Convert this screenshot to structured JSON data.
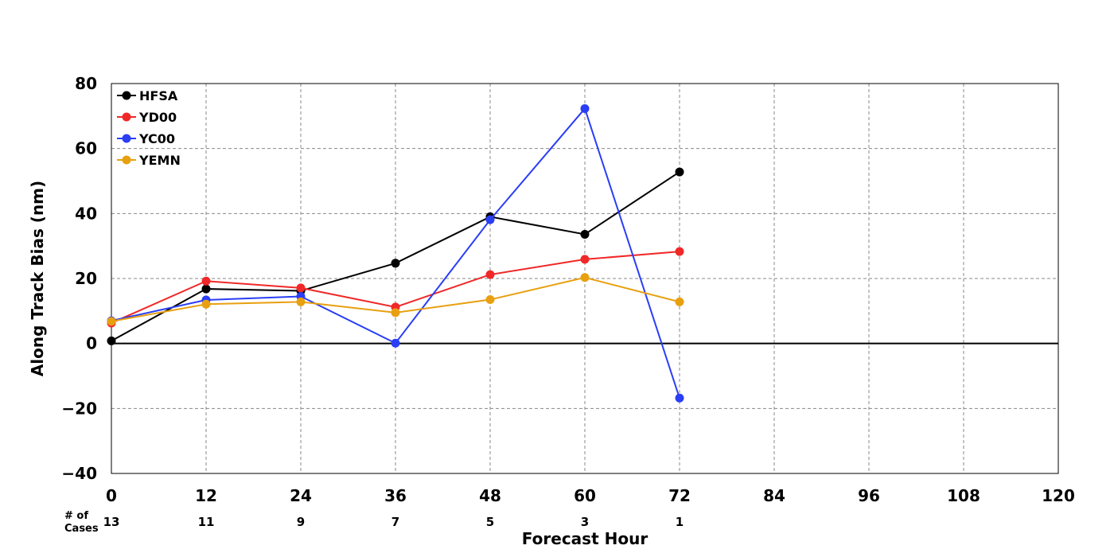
{
  "chart_data": {
    "type": "line",
    "xlabel": "Forecast Hour",
    "ylabel": "Along Track Bias (nm)",
    "xlim": [
      0,
      120
    ],
    "ylim": [
      -40,
      80
    ],
    "xticks": [
      0,
      12,
      24,
      36,
      48,
      60,
      72,
      84,
      96,
      108,
      120
    ],
    "yticks": [
      -40,
      -20,
      0,
      20,
      40,
      60,
      80
    ],
    "ytick_labels": [
      "−40",
      "−20",
      "0",
      "20",
      "40",
      "60",
      "80"
    ],
    "grid": true,
    "legend_position": "top-left",
    "x": [
      0,
      12,
      24,
      36,
      48,
      60,
      72
    ],
    "series": [
      {
        "name": "HFSA",
        "color": "#000000",
        "values": [
          0.8,
          16.8,
          16.2,
          24.7,
          39.0,
          33.6,
          52.8
        ]
      },
      {
        "name": "YD00",
        "color": "#f02828",
        "values": [
          6.3,
          19.2,
          17.1,
          11.2,
          21.2,
          25.9,
          28.3
        ]
      },
      {
        "name": "YC00",
        "color": "#2a3ef5",
        "values": [
          7.0,
          13.4,
          14.5,
          0.1,
          38.1,
          72.3,
          -16.8
        ]
      },
      {
        "name": "YEMN",
        "color": "#e8a010",
        "values": [
          6.8,
          12.1,
          12.8,
          9.5,
          13.5,
          20.3,
          12.8
        ]
      }
    ],
    "cases": {
      "label_line1": "# of",
      "label_line2": "Cases",
      "x": [
        0,
        12,
        24,
        36,
        48,
        60,
        72
      ],
      "values": [
        "13",
        "11",
        "9",
        "7",
        "5",
        "3",
        "1"
      ]
    }
  }
}
